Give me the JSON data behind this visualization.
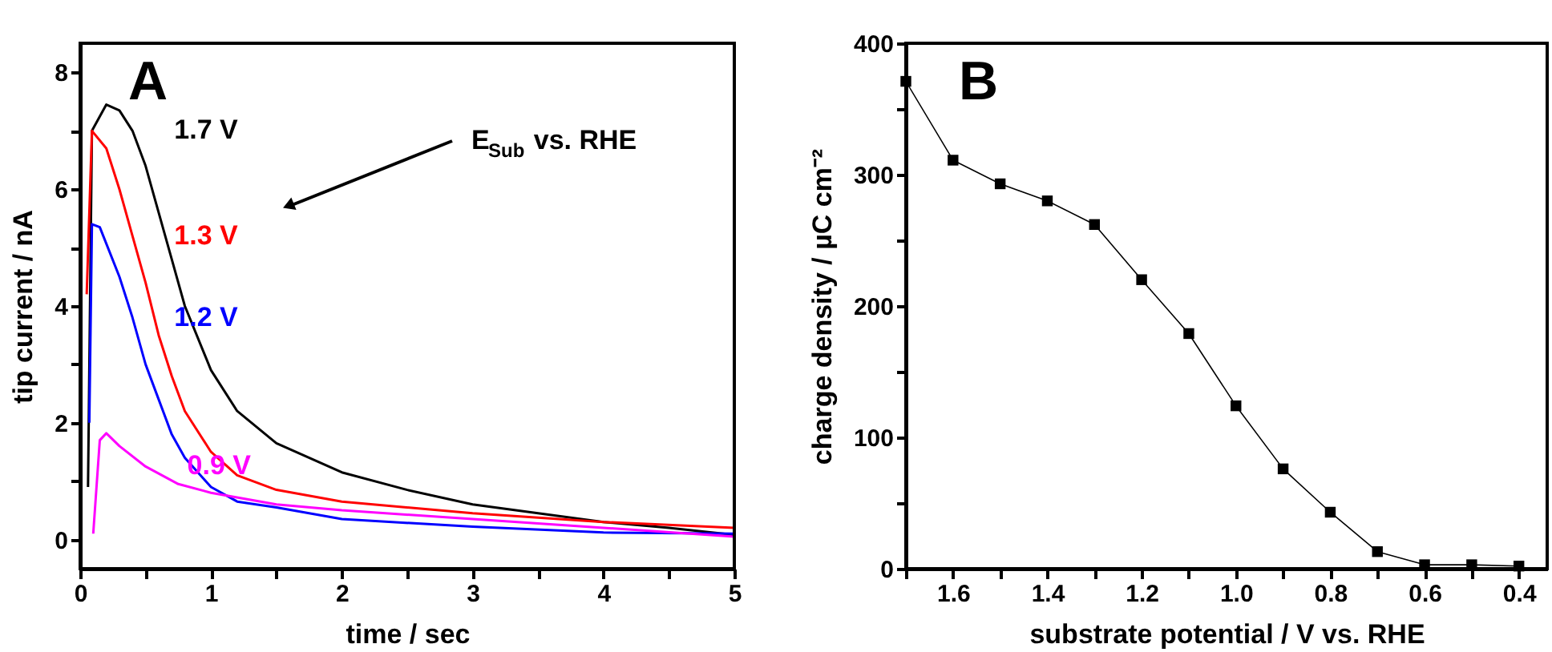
{
  "chart_data": [
    {
      "type": "line",
      "title": "A",
      "xlabel": "time / sec",
      "ylabel": "tip current / nA",
      "xlim": [
        0,
        5
      ],
      "ylim": [
        -0.5,
        8.5
      ],
      "xticks": [
        0,
        {
          "value": 0.5,
          "label": null
        },
        1,
        {
          "value": 1.5,
          "label": null
        },
        2,
        {
          "value": 2.5,
          "label": null
        },
        3,
        {
          "value": 3.5,
          "label": null
        },
        4,
        {
          "value": 4.5,
          "label": null
        },
        5
      ],
      "yticks": [
        0,
        {
          "value": 1,
          "label": null
        },
        2,
        {
          "value": 3,
          "label": null
        },
        4,
        {
          "value": 5,
          "label": null
        },
        6,
        {
          "value": 7,
          "label": null
        },
        8
      ],
      "grid": false,
      "legend": false,
      "marker": "none",
      "line_style": "solid",
      "annotations": [
        "E$_{Sub}$ vs. RHE"
      ],
      "series": [
        {
          "name": "1.7 V",
          "color": "#000000",
          "x": [
            0.06,
            0.09,
            0.2,
            0.3,
            0.4,
            0.5,
            0.6,
            0.7,
            0.8,
            1.0,
            1.2,
            1.5,
            2.0,
            2.5,
            3.0,
            3.5,
            4.0,
            4.5,
            5.0
          ],
          "values": [
            0.9,
            7.0,
            7.45,
            7.35,
            7.0,
            6.4,
            5.6,
            4.8,
            4.0,
            2.9,
            2.2,
            1.65,
            1.15,
            0.85,
            0.6,
            0.45,
            0.3,
            0.2,
            0.08
          ]
        },
        {
          "name": "1.3 V",
          "color": "#ff0000",
          "x": [
            0.05,
            0.09,
            0.2,
            0.3,
            0.4,
            0.5,
            0.6,
            0.7,
            0.8,
            1.0,
            1.2,
            1.5,
            2.0,
            3.0,
            4.0,
            5.0
          ],
          "values": [
            4.2,
            7.0,
            6.7,
            6.0,
            5.2,
            4.4,
            3.5,
            2.8,
            2.2,
            1.5,
            1.1,
            0.85,
            0.65,
            0.45,
            0.3,
            0.2
          ]
        },
        {
          "name": "1.2 V",
          "color": "#0000ff",
          "x": [
            0.07,
            0.09,
            0.15,
            0.3,
            0.4,
            0.5,
            0.6,
            0.7,
            0.8,
            1.0,
            1.2,
            1.5,
            2.0,
            3.0,
            4.0,
            5.0
          ],
          "values": [
            2.0,
            5.4,
            5.35,
            4.5,
            3.8,
            3.0,
            2.4,
            1.8,
            1.4,
            0.9,
            0.65,
            0.55,
            0.35,
            0.22,
            0.12,
            0.1
          ]
        },
        {
          "name": "0.9 V",
          "color": "#ff00ff",
          "x": [
            0.1,
            0.15,
            0.2,
            0.3,
            0.5,
            0.75,
            1.0,
            1.5,
            2.0,
            3.0,
            4.0,
            5.0
          ],
          "values": [
            0.1,
            1.7,
            1.82,
            1.6,
            1.25,
            0.95,
            0.8,
            0.6,
            0.5,
            0.35,
            0.2,
            0.05
          ]
        }
      ]
    },
    {
      "type": "line",
      "title": "B",
      "xlabel": "substrate potential / V vs. RHE",
      "ylabel": "charge density / µC cm⁻²",
      "xlim": [
        1.7,
        0.34
      ],
      "ylim": [
        0,
        400
      ],
      "xticks": [
        {
          "value": 1.7,
          "label": null
        },
        1.6,
        {
          "value": 1.5,
          "label": null
        },
        1.4,
        {
          "value": 1.3,
          "label": null
        },
        1.2,
        {
          "value": 1.1,
          "label": null
        },
        {
          "value": 1.0,
          "label": "1.0"
        },
        {
          "value": 0.9,
          "label": null
        },
        0.8,
        {
          "value": 0.7,
          "label": null
        },
        0.6,
        {
          "value": 0.5,
          "label": null
        },
        0.4
      ],
      "yticks": [
        0,
        {
          "value": 50,
          "label": null
        },
        100,
        {
          "value": 150,
          "label": null
        },
        200,
        {
          "value": 250,
          "label": null
        },
        300,
        {
          "value": 350,
          "label": null
        },
        400
      ],
      "grid": false,
      "legend": false,
      "marker": "square",
      "line_style": "solid",
      "series": [
        {
          "color": "#000000",
          "x": [
            1.7,
            1.6,
            1.5,
            1.4,
            1.3,
            1.2,
            1.1,
            1.0,
            0.9,
            0.8,
            0.7,
            0.6,
            0.5,
            0.4
          ],
          "values": [
            371,
            311,
            293,
            280,
            262,
            220,
            179,
            124,
            76,
            43,
            13,
            3,
            3,
            2
          ]
        }
      ]
    }
  ]
}
